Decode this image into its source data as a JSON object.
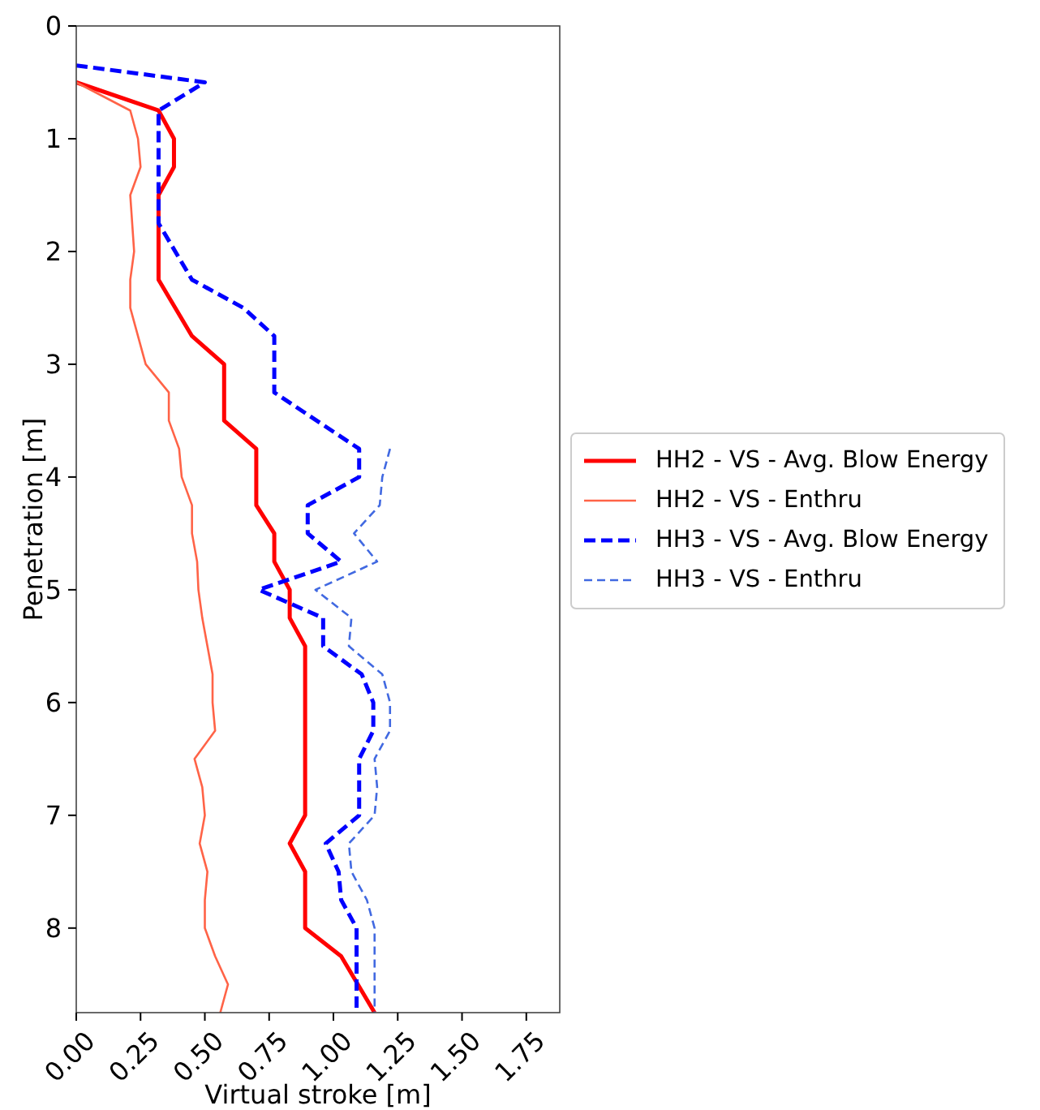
{
  "chart_data": {
    "type": "line",
    "xlabel": "Virtual stroke [m]",
    "ylabel": "Penetration [m]",
    "xlim": [
      0,
      1.88
    ],
    "xticks": [
      {
        "value": 0,
        "label": "0.00"
      },
      {
        "value": 0.25,
        "label": "0.25"
      },
      {
        "value": 0.5,
        "label": "0.50"
      },
      {
        "value": 0.75,
        "label": "0.75"
      },
      {
        "value": 1,
        "label": "1.00"
      },
      {
        "value": 1.25,
        "label": "1.25"
      },
      {
        "value": 1.5,
        "label": "1.50"
      },
      {
        "value": 1.75,
        "label": "1.75"
      }
    ],
    "ylim": [
      8.75,
      0
    ],
    "yticks": [
      0,
      1,
      2,
      3,
      4,
      5,
      6,
      7,
      8
    ],
    "grid": false,
    "legend": "right",
    "series": [
      {
        "name": "HH2 - VS - Avg. Blow Energy",
        "color": "#ff0000",
        "line_style": "solid",
        "x": [
          0,
          0.32,
          0.38,
          0.38,
          0.32,
          0.32,
          0.45,
          0.575,
          0.575,
          0.7,
          0.7,
          0.77,
          0.77,
          0.83,
          0.83,
          0.89,
          0.89,
          0.83,
          0.89,
          0.89,
          1.03,
          1.16
        ],
        "values": [
          0.5,
          0.75,
          1,
          1.25,
          1.5,
          2.25,
          2.75,
          3,
          3.5,
          3.75,
          4.25,
          4.5,
          4.75,
          5,
          5.25,
          5.5,
          7,
          7.25,
          7.5,
          8,
          8.25,
          8.75
        ]
      },
      {
        "name": "HH2 - VS - Enthru",
        "color": "#ff6347",
        "line_style": "solid",
        "x": [
          0,
          0.21,
          0.24,
          0.25,
          0.21,
          0.225,
          0.21,
          0.21,
          0.27,
          0.36,
          0.36,
          0.4,
          0.41,
          0.45,
          0.45,
          0.47,
          0.475,
          0.49,
          0.51,
          0.53,
          0.53,
          0.54,
          0.46,
          0.49,
          0.5,
          0.48,
          0.51,
          0.5,
          0.5,
          0.54,
          0.59,
          0.56
        ],
        "values": [
          0.5,
          0.75,
          1,
          1.25,
          1.5,
          2,
          2.25,
          2.5,
          3,
          3.25,
          3.5,
          3.75,
          4,
          4.25,
          4.5,
          4.75,
          5,
          5.25,
          5.5,
          5.75,
          6,
          6.25,
          6.5,
          6.75,
          7,
          7.25,
          7.5,
          7.75,
          8,
          8.25,
          8.5,
          8.75
        ]
      },
      {
        "name": "HH3 - VS - Avg. Blow Energy",
        "color": "#0000ff",
        "line_style": "dashed",
        "x": [
          0,
          0.5,
          0.32,
          0.32,
          0.45,
          0.65,
          0.77,
          0.77,
          1.1,
          1.1,
          0.9,
          0.9,
          1.03,
          0.71,
          0.96,
          0.96,
          1.11,
          1.155,
          1.155,
          1.1,
          1.1,
          0.97,
          1.02,
          1.03,
          1.09,
          1.09
        ],
        "values": [
          0.35,
          0.5,
          0.75,
          1.75,
          2.25,
          2.5,
          2.75,
          3.25,
          3.75,
          4,
          4.25,
          4.5,
          4.75,
          5,
          5.25,
          5.5,
          5.75,
          6,
          6.25,
          6.5,
          7,
          7.25,
          7.5,
          7.75,
          8,
          8.75
        ]
      },
      {
        "name": "HH3 - VS - Enthru",
        "color": "#4169e1",
        "line_style": "dashed",
        "x": [
          1.22,
          1.19,
          1.18,
          1.08,
          1.17,
          0.93,
          1.07,
          1.06,
          1.19,
          1.22,
          1.22,
          1.16,
          1.17,
          1.16,
          1.06,
          1.07,
          1.13,
          1.16,
          1.16
        ],
        "values": [
          3.75,
          4,
          4.25,
          4.5,
          4.75,
          5,
          5.25,
          5.5,
          5.75,
          6,
          6.25,
          6.5,
          6.75,
          7,
          7.25,
          7.5,
          7.75,
          8,
          8.75
        ]
      }
    ]
  }
}
